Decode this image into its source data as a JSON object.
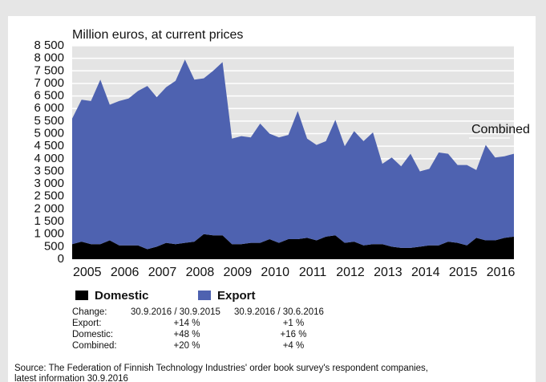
{
  "chart_data": {
    "type": "stacked-area",
    "ylabel": "Million euros, at current prices",
    "annotation": "Combined",
    "x": [
      2005,
      2005.25,
      2005.5,
      2005.75,
      2006,
      2006.25,
      2006.5,
      2006.75,
      2007,
      2007.25,
      2007.5,
      2007.75,
      2008,
      2008.25,
      2008.5,
      2008.75,
      2009,
      2009.25,
      2009.5,
      2009.75,
      2010,
      2010.25,
      2010.5,
      2010.75,
      2011,
      2011.25,
      2011.5,
      2011.75,
      2012,
      2012.25,
      2012.5,
      2012.75,
      2013,
      2013.25,
      2013.5,
      2013.75,
      2014,
      2014.25,
      2014.5,
      2014.75,
      2015,
      2015.25,
      2015.5,
      2015.75,
      2016,
      2016.25,
      2016.5,
      2016.75
    ],
    "series": [
      {
        "name": "Domestic",
        "color": "#000000",
        "values": [
          600,
          700,
          600,
          600,
          750,
          550,
          550,
          550,
          400,
          500,
          650,
          600,
          650,
          700,
          1000,
          950,
          950,
          600,
          600,
          650,
          650,
          800,
          650,
          800,
          800,
          850,
          750,
          900,
          950,
          650,
          700,
          550,
          600,
          600,
          500,
          450,
          450,
          500,
          550,
          550,
          700,
          650,
          550,
          850,
          750,
          750,
          850,
          900
        ]
      },
      {
        "name": "Export",
        "color": "#4e62b0",
        "values": [
          5000,
          5650,
          5700,
          6550,
          5400,
          5750,
          5850,
          6150,
          6500,
          5950,
          6200,
          6500,
          7300,
          6450,
          6200,
          6550,
          6900,
          4200,
          4300,
          4200,
          4750,
          4200,
          4200,
          4150,
          5100,
          3950,
          3800,
          3800,
          4600,
          3850,
          4400,
          4150,
          4450,
          3200,
          3550,
          3250,
          3750,
          3000,
          3050,
          3700,
          3500,
          3100,
          3200,
          2700,
          3800,
          3300,
          3250,
          3300
        ]
      }
    ],
    "xlim": [
      2005,
      2016.75
    ],
    "xticks": [
      {
        "value": 2005.4,
        "label": "2005"
      },
      {
        "value": 2006.4,
        "label": "2006"
      },
      {
        "value": 2007.4,
        "label": "2007"
      },
      {
        "value": 2008.4,
        "label": "2008"
      },
      {
        "value": 2009.4,
        "label": "2009"
      },
      {
        "value": 2010.4,
        "label": "2010"
      },
      {
        "value": 2011.4,
        "label": "2011"
      },
      {
        "value": 2012.4,
        "label": "2012"
      },
      {
        "value": 2013.4,
        "label": "2013"
      },
      {
        "value": 2014.4,
        "label": "2014"
      },
      {
        "value": 2015.4,
        "label": "2015"
      },
      {
        "value": 2016.4,
        "label": "2016"
      }
    ],
    "ylim": [
      0,
      8500
    ],
    "yticks": [
      0,
      500,
      {
        "value": 1000,
        "label": "1 000"
      },
      {
        "value": 1500,
        "label": "1 500"
      },
      {
        "value": 2000,
        "label": "2 000"
      },
      {
        "value": 2500,
        "label": "2 500"
      },
      {
        "value": 3000,
        "label": "3 000"
      },
      {
        "value": 3500,
        "label": "3 500"
      },
      {
        "value": 4000,
        "label": "4 000"
      },
      {
        "value": 4500,
        "label": "4 500"
      },
      {
        "value": 5000,
        "label": "5 000"
      },
      {
        "value": 5500,
        "label": "5 500"
      },
      {
        "value": 6000,
        "label": "6 000"
      },
      {
        "value": 6500,
        "label": "6 500"
      },
      {
        "value": 7000,
        "label": "7 000"
      },
      {
        "value": 7500,
        "label": "7 500"
      },
      {
        "value": 8000,
        "label": "8 000"
      },
      {
        "value": 8500,
        "label": "8 500"
      }
    ],
    "grid": true,
    "table": {
      "header": [
        "Change:",
        "30.9.2016 / 30.9.2015",
        "30.9.2016 / 30.6.2016"
      ],
      "rows": [
        [
          "Export:",
          "+14 %",
          "+1 %"
        ],
        [
          "Domestic:",
          "+48 %",
          "+16 %"
        ],
        [
          "Combined:",
          "+20 %",
          "+4 %"
        ]
      ]
    },
    "source": [
      "Source: The Federation of Finnish Technology Industries' order book survey's respondent companies,",
      "latest information 30.9.2016"
    ]
  }
}
